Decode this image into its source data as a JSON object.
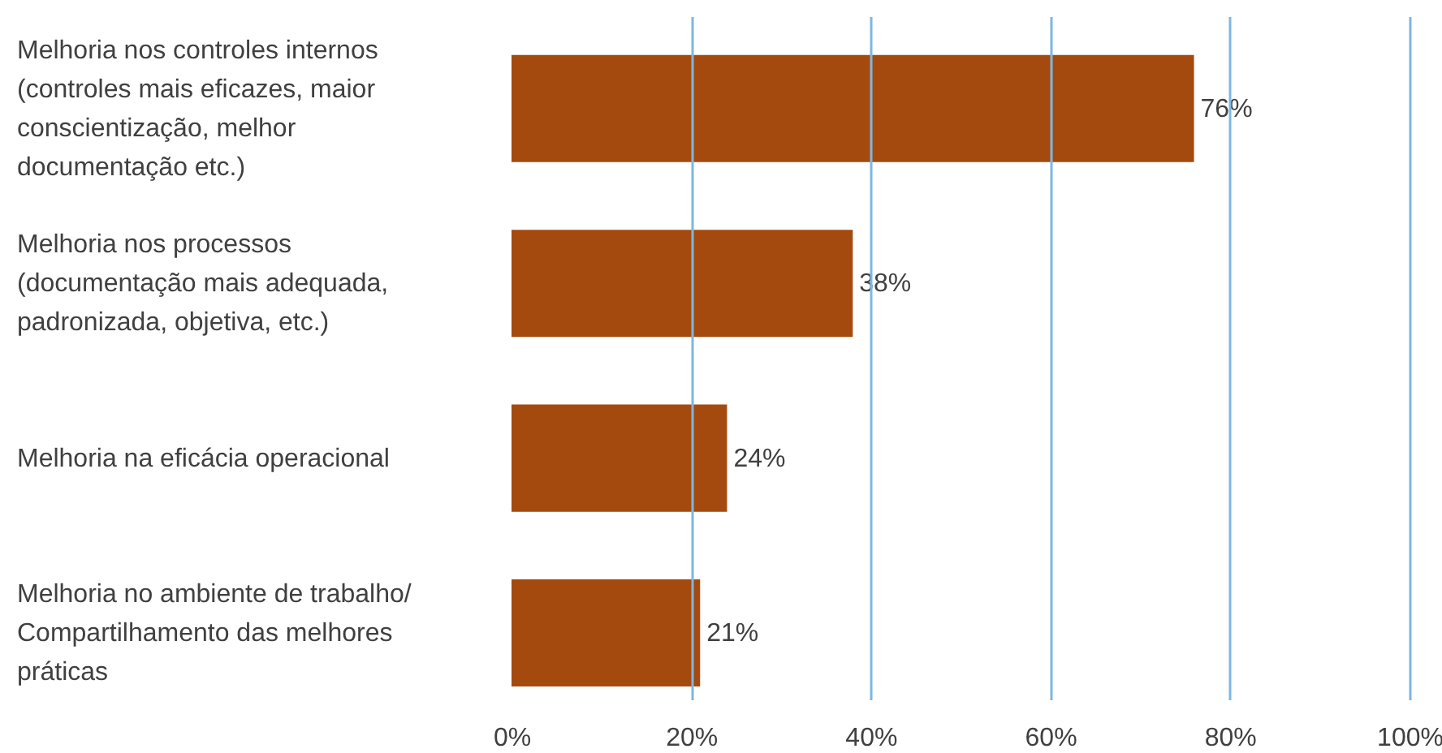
{
  "chart_data": {
    "type": "bar",
    "orientation": "horizontal",
    "categories": [
      "Melhoria nos controles internos (controles mais eficazes, maior conscientização, melhor documentação etc.)",
      "Melhoria nos processos (documentação mais adequada, padronizada, objetiva, etc.)",
      "Melhoria na  eficácia operacional",
      "Melhoria no ambiente de trabalho/ Compartilhamento das melhores práticas"
    ],
    "values": [
      76,
      38,
      24,
      21
    ],
    "value_labels": [
      "76%",
      "38%",
      "24%",
      "21%"
    ],
    "color": "#a44a0e",
    "xlim": [
      0,
      100
    ],
    "xticks": [
      {
        "value": 0,
        "label": "0%"
      },
      {
        "value": 20,
        "label": "20%"
      },
      {
        "value": 40,
        "label": "40%"
      },
      {
        "value": 60,
        "label": "60%"
      },
      {
        "value": 80,
        "label": "80%"
      },
      {
        "value": 100,
        "label": "100%"
      }
    ],
    "grid": "x"
  }
}
